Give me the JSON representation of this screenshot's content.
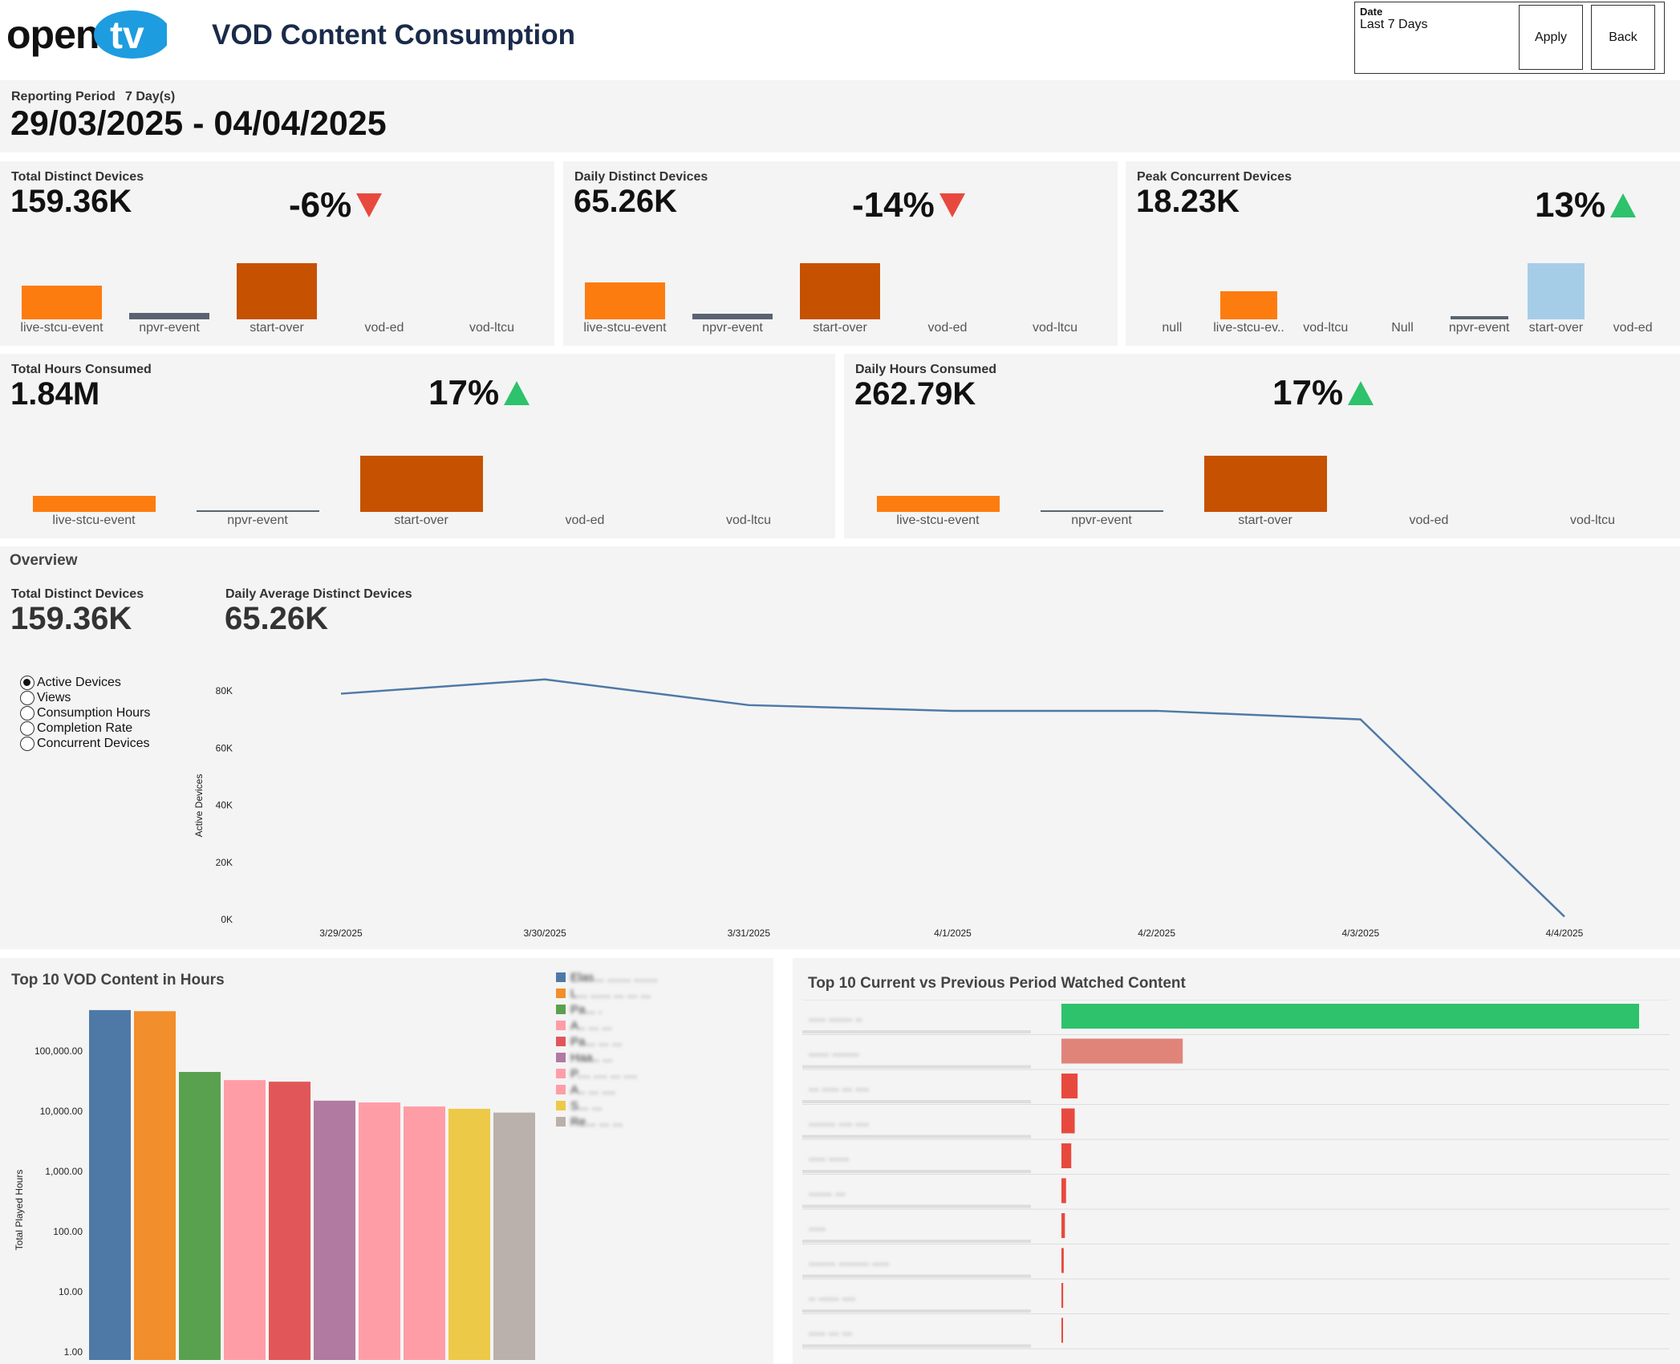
{
  "header": {
    "logo_text": "opentv",
    "title": "VOD Content Consumption",
    "date_filter": {
      "label": "Date",
      "value": "Last 7 Days"
    },
    "apply_label": "Apply",
    "back_label": "Back"
  },
  "period": {
    "label": "Reporting Period",
    "days": "7 Day(s)",
    "range": "29/03/2025 - 04/04/2025"
  },
  "kpis": {
    "total_distinct": {
      "label": "Total Distinct Devices",
      "value": "159.36K",
      "change": "-6%",
      "direction": "down",
      "bars": [
        {
          "category": "live-stcu-event",
          "value": 30,
          "color": "#fd7c0f"
        },
        {
          "category": "npvr-event",
          "value": 6,
          "color": "#5a6371"
        },
        {
          "category": "start-over",
          "value": 50,
          "color": "#c65100"
        },
        {
          "category": "vod-ed",
          "value": 0,
          "color": "#c65100"
        },
        {
          "category": "vod-ltcu",
          "value": 0,
          "color": "#c65100"
        }
      ]
    },
    "daily_distinct": {
      "label": "Daily Distinct Devices",
      "value": "65.26K",
      "change": "-14%",
      "direction": "down",
      "bars": [
        {
          "category": "live-stcu-event",
          "value": 33,
          "color": "#fd7c0f"
        },
        {
          "category": "npvr-event",
          "value": 5,
          "color": "#5a6371"
        },
        {
          "category": "start-over",
          "value": 50,
          "color": "#c65100"
        },
        {
          "category": "vod-ed",
          "value": 0,
          "color": "#c65100"
        },
        {
          "category": "vod-ltcu",
          "value": 0,
          "color": "#c65100"
        }
      ]
    },
    "peak_concurrent": {
      "label": "Peak Concurrent Devices",
      "value": "18.23K",
      "change": "13%",
      "direction": "up",
      "bars": [
        {
          "category": "null",
          "value": 0,
          "color": "#fd7c0f"
        },
        {
          "category": "live-stcu-ev..",
          "value": 25,
          "color": "#fd7c0f"
        },
        {
          "category": "vod-ltcu",
          "value": 0,
          "color": "#fd7c0f"
        },
        {
          "category": "Null",
          "value": 0,
          "color": "#fd7c0f"
        },
        {
          "category": "npvr-event",
          "value": 3,
          "color": "#5a6371"
        },
        {
          "category": "start-over",
          "value": 50,
          "color": "#a6cde8"
        },
        {
          "category": "vod-ed",
          "value": 0,
          "color": "#a6cde8"
        }
      ]
    },
    "total_hours": {
      "label": "Total Hours Consumed",
      "value": "1.84M",
      "change": "17%",
      "direction": "up",
      "bars": [
        {
          "category": "live-stcu-event",
          "value": 14,
          "color": "#fd7c0f"
        },
        {
          "category": "npvr-event",
          "value": 1,
          "color": "#5a6371"
        },
        {
          "category": "start-over",
          "value": 50,
          "color": "#c65100"
        },
        {
          "category": "vod-ed",
          "value": 0,
          "color": "#c65100"
        },
        {
          "category": "vod-ltcu",
          "value": 0,
          "color": "#c65100"
        }
      ]
    },
    "daily_hours": {
      "label": "Daily Hours Consumed",
      "value": "262.79K",
      "change": "17%",
      "direction": "up",
      "bars": [
        {
          "category": "live-stcu-event",
          "value": 14,
          "color": "#fd7c0f"
        },
        {
          "category": "npvr-event",
          "value": 1,
          "color": "#5a6371"
        },
        {
          "category": "start-over",
          "value": 50,
          "color": "#c65100"
        },
        {
          "category": "vod-ed",
          "value": 0,
          "color": "#c65100"
        },
        {
          "category": "vod-ltcu",
          "value": 0,
          "color": "#c65100"
        }
      ]
    }
  },
  "overview": {
    "title": "Overview",
    "total_label": "Total Distinct Devices",
    "total_value": "159.36K",
    "avg_label": "Daily Average Distinct Devices",
    "avg_value": "65.26K",
    "metric_options": [
      "Active Devices",
      "Views",
      "Consumption Hours",
      "Completion Rate",
      "Concurrent Devices"
    ],
    "selected_metric": "Active Devices"
  },
  "chart_data": [
    {
      "type": "line",
      "title": "Active Devices",
      "ylabel": "Active Devices",
      "x": [
        "3/29/2025",
        "3/30/2025",
        "3/31/2025",
        "4/1/2025",
        "4/2/2025",
        "4/3/2025",
        "4/4/2025"
      ],
      "series": [
        {
          "name": "Active Devices",
          "values": [
            79000,
            84000,
            75000,
            73000,
            73000,
            70000,
            1000
          ],
          "color": "#4e79a7"
        }
      ],
      "yticks": [
        "0K",
        "20K",
        "40K",
        "60K",
        "80K"
      ],
      "ylim": [
        0,
        80000
      ]
    },
    {
      "type": "bar",
      "title": "Top 10 VOD Content in Hours",
      "ylabel": "Total Played Hours",
      "scale": "log",
      "yticks": [
        "1.00",
        "10.00",
        "100.00",
        "1,000.00",
        "10,000.00",
        "100,000.00"
      ],
      "values": [
        480000,
        460000,
        45000,
        33000,
        31000,
        15000,
        14000,
        12000,
        11000,
        9500
      ],
      "colors": [
        "#4e79a7",
        "#f28e2b",
        "#59a14f",
        "#ff9da7",
        "#e15759",
        "#b07aa1",
        "#ff9da7",
        "#ff9da7",
        "#edc948",
        "#bab0ac"
      ],
      "legend": [
        "Elas... ....... .......",
        "L... ...... ... ... ...",
        "Pa... .",
        "A.. ... ...",
        "Pa... ... ...",
        "Haa.. ...",
        "P.... .... ... ....",
        "A.. ... ....",
        "S... ...",
        "Re... ... ..."
      ]
    },
    {
      "type": "bar",
      "orientation": "horizontal",
      "title": "Top 10 Current vs Previous Period Watched Content",
      "categories": [
        "..... ....... ..",
        "...... ........",
        "... ..... ... ....",
        "........ .... ....",
        "..... ......",
        "....... ...",
        ".....",
        "........ ......... .....",
        ".. ...... ....",
        "..... ... ..."
      ],
      "values": [
        100,
        21,
        2.8,
        2.3,
        1.7,
        0.8,
        0.6,
        0.4,
        0.3,
        0.2
      ],
      "colors": [
        "#2dc26b",
        "#e0847a",
        "#e8493e",
        "#e8493e",
        "#e8493e",
        "#e8493e",
        "#e8493e",
        "#e8493e",
        "#e8493e",
        "#e8493e"
      ]
    }
  ]
}
